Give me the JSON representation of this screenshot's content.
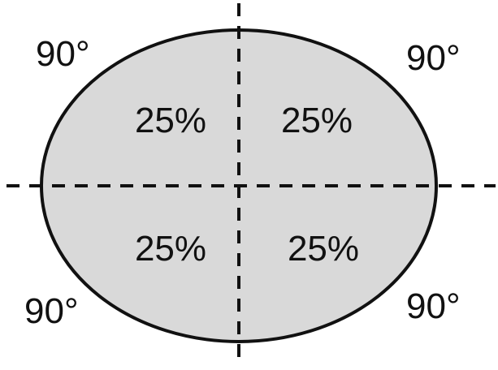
{
  "quadrants": [
    {
      "position": "top-left",
      "share_label": "25%",
      "angle_label": "90°"
    },
    {
      "position": "top-right",
      "share_label": "25%",
      "angle_label": "90°"
    },
    {
      "position": "bottom-left",
      "share_label": "25%",
      "angle_label": "90°"
    },
    {
      "position": "bottom-right",
      "share_label": "25%",
      "angle_label": "90°"
    }
  ],
  "colors": {
    "ellipse_fill": "#d9d9d9",
    "outline": "#111111",
    "background": "#ffffff"
  }
}
